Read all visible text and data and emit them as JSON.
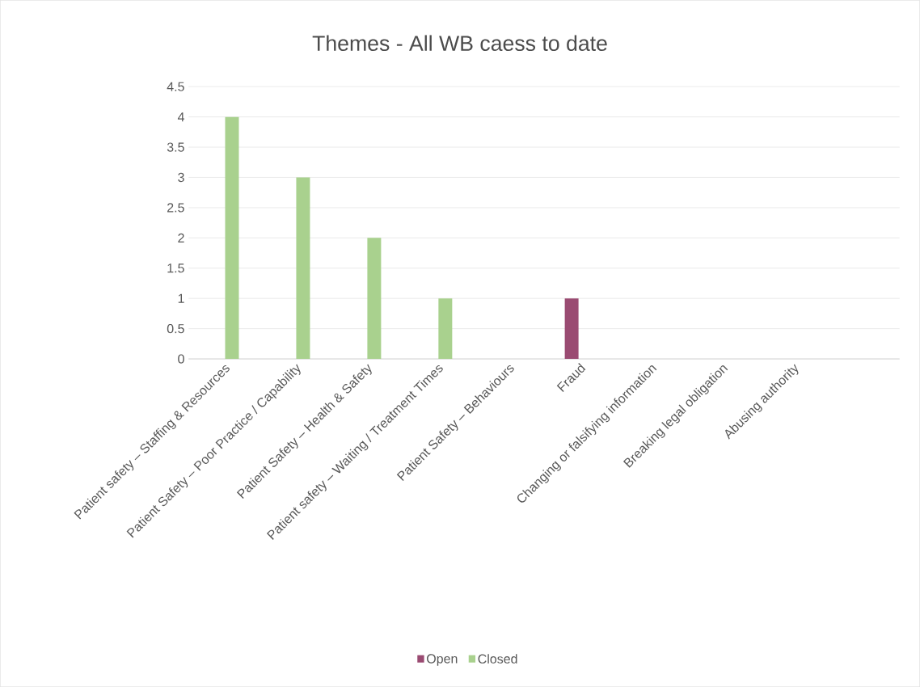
{
  "chart_data": {
    "type": "bar",
    "title": "Themes - All WB caess to date",
    "categories": [
      "Patient safety – Staffing & Resources",
      "Patient Safety – Poor Practice / Capability",
      "Patient Safety – Health & Safety",
      "Patient safety – Waiting / Treatment Times",
      "Patient Safety – Behaviours",
      "Fraud",
      "Changing or falsifying information",
      "Breaking legal obligation",
      "Abusing authority",
      null
    ],
    "series": [
      {
        "name": "Open",
        "color": "#9a4b72",
        "values": [
          0,
          0,
          0,
          0,
          0,
          1,
          0,
          0,
          0,
          0
        ]
      },
      {
        "name": "Closed",
        "color": "#a9d18e",
        "values": [
          4,
          3,
          2,
          1,
          0,
          0,
          0,
          0,
          0,
          0
        ]
      }
    ],
    "ylim": [
      0,
      4.5
    ],
    "yticks": [
      0,
      0.5,
      1,
      1.5,
      2,
      2.5,
      3,
      3.5,
      4,
      4.5
    ],
    "grid": "y",
    "legend": "bottom"
  }
}
